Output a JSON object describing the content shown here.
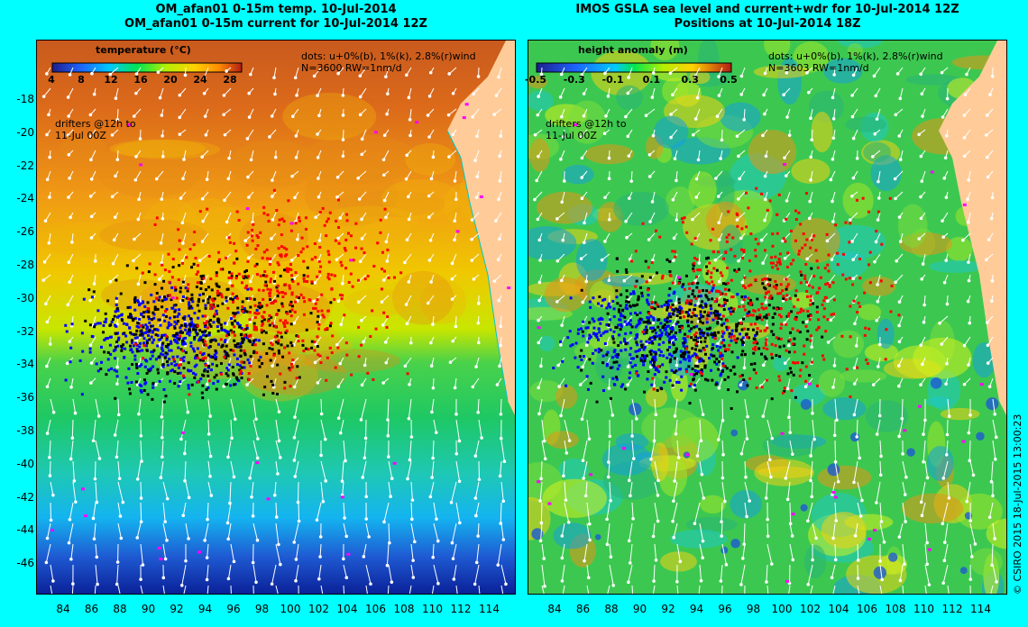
{
  "left_panel": {
    "title_line1": "OM_afan01 0-15m temp. 10-Jul-2014",
    "title_line2": "OM_afan01 0-15m current for 10-Jul-2014 12Z",
    "colorbar_title": "temperature (°C)",
    "colorbar_ticks": [
      "4",
      "8",
      "12",
      "16",
      "20",
      "24",
      "28"
    ],
    "legend_dots": "dots: u+0%(b), 1%(k), 2.8%(r)wind",
    "legend_n": "N=3600 RW=1nm/d",
    "drifters_line1": "drifters @12h to",
    "drifters_line2": "11-Jul 00Z"
  },
  "right_panel": {
    "title_line1": "IMOS GSLA sea level and current+wdr for 10-Jul-2014 12Z",
    "title_line2": "Positions at 10-Jul-2014 18Z",
    "colorbar_title": "height anomaly  (m)",
    "colorbar_ticks": [
      "-0.5",
      "-0.3",
      "-0.1",
      "0.1",
      "0.3",
      "0.5"
    ],
    "legend_dots": "dots: u+0%(b), 1%(k), 2.8%(r)wind",
    "legend_n": "N=3603 RW=1nm/d",
    "drifters_line1": "drifters @12h to",
    "drifters_line2": "11-Jul 00Z"
  },
  "y_axis_labels": [
    "-18",
    "-20",
    "-22",
    "-24",
    "-26",
    "-28",
    "-30",
    "-32",
    "-34",
    "-36",
    "-38",
    "-40",
    "-42",
    "-44",
    "-46"
  ],
  "x_axis_labels": [
    "84",
    "86",
    "88",
    "90",
    "92",
    "94",
    "96",
    "98",
    "100",
    "102",
    "104",
    "106",
    "108",
    "110",
    "112",
    "114"
  ],
  "credit": "© CSIRO 2015   18-Jul-2015 13:00:23",
  "colors": {
    "background": "#00ffff",
    "land": "#ffcc99",
    "dots_blue": "#0000ff",
    "dots_black": "#000000",
    "dots_red": "#ff0000",
    "magenta": "#ff00ff"
  }
}
